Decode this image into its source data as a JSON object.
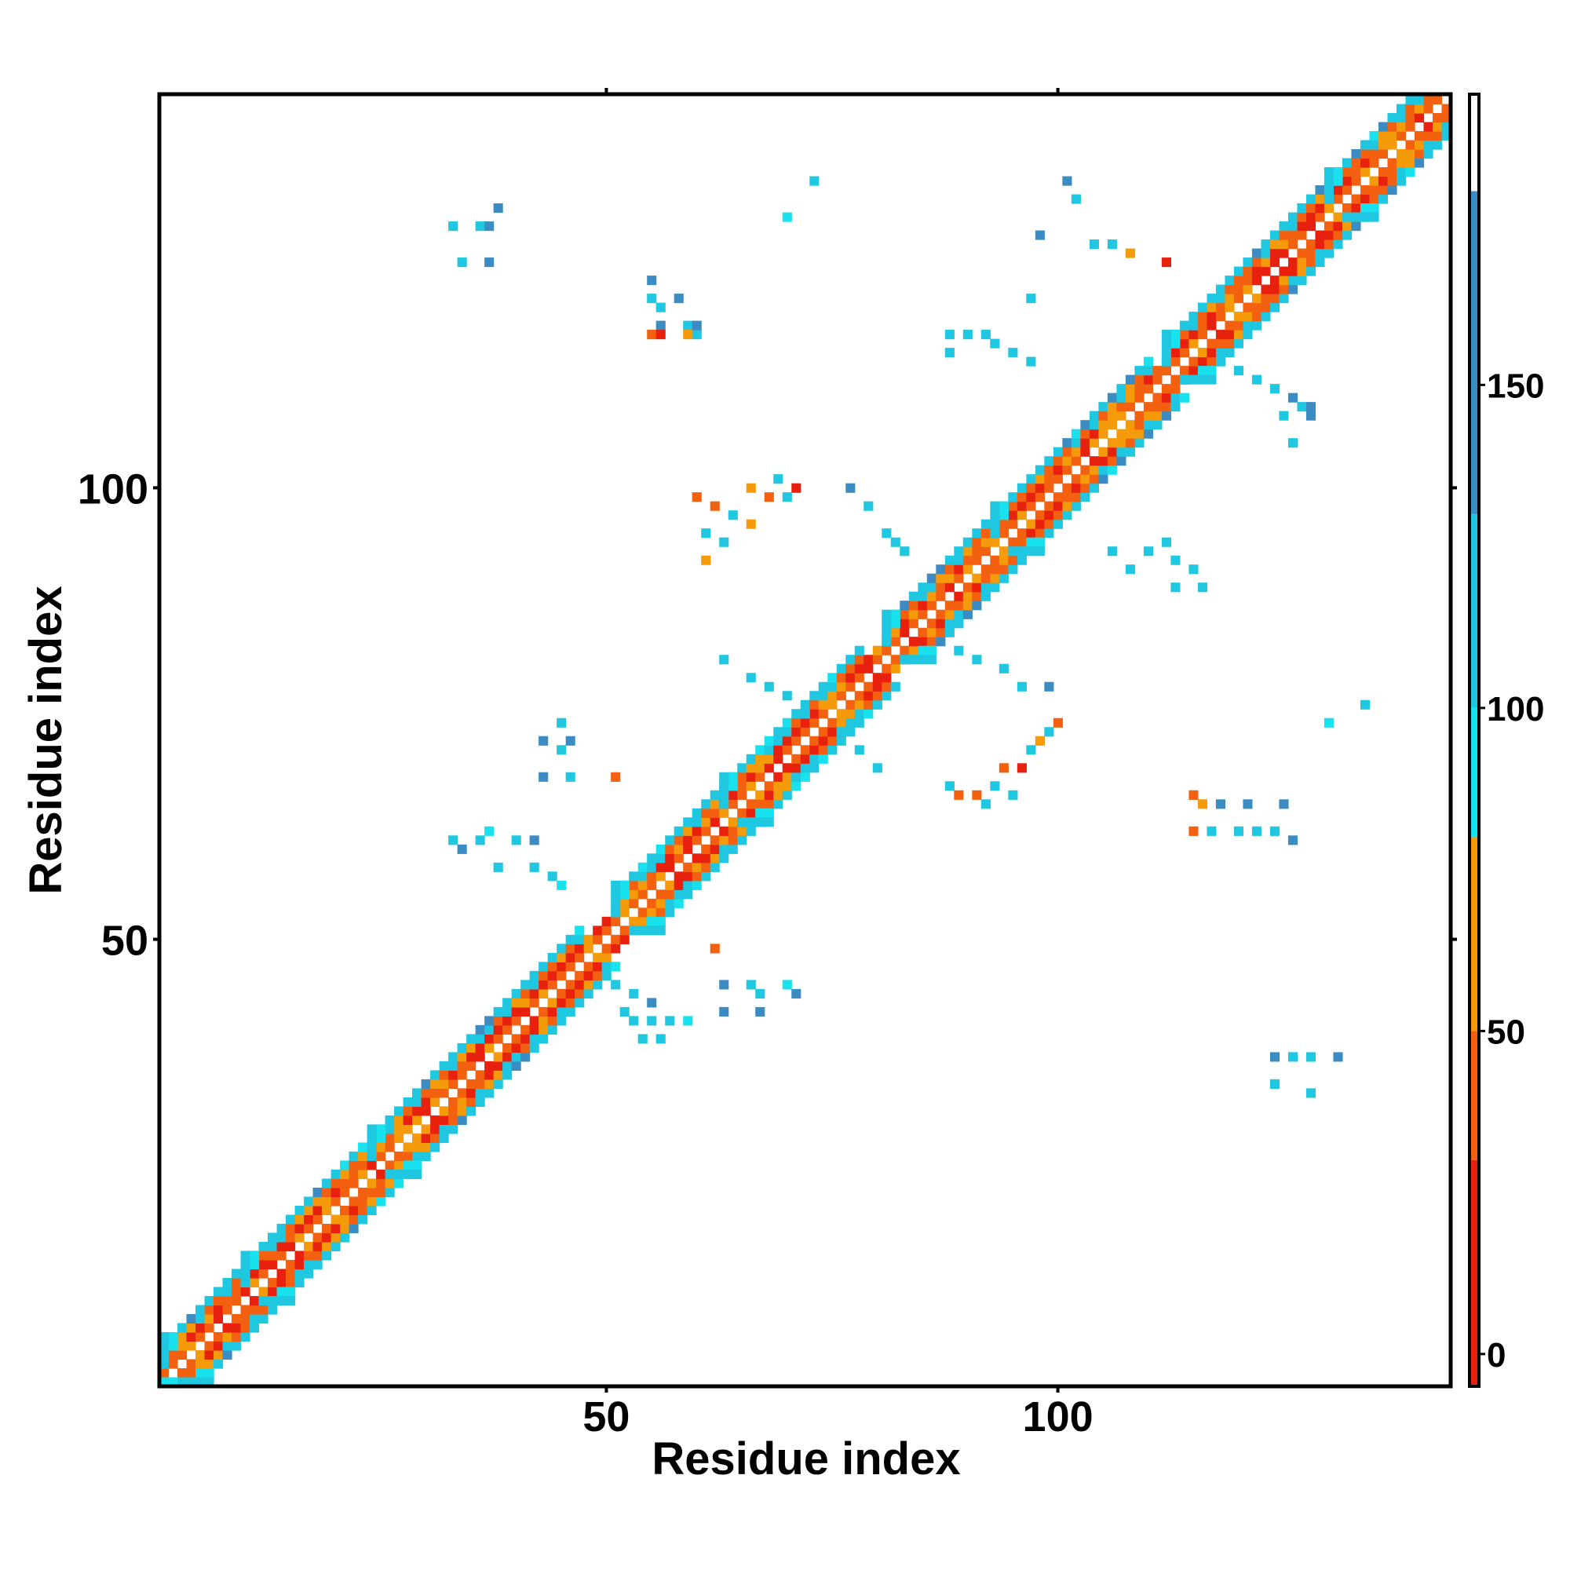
{
  "chart_data": {
    "type": "heatmap",
    "title": "",
    "xlabel": "Residue index",
    "ylabel": "Residue index",
    "n_residues": 143,
    "xlim": [
      1,
      143
    ],
    "ylim": [
      1,
      143
    ],
    "x_ticks": [
      50,
      100
    ],
    "y_ticks": [
      50,
      100
    ],
    "x_tick_labels": [
      "50",
      "100"
    ],
    "y_tick_labels": [
      "50",
      "100"
    ],
    "grid": false,
    "colorbar": {
      "ticks": [
        0,
        50,
        100,
        150
      ],
      "tick_labels": [
        "0",
        "50",
        "100",
        "150"
      ],
      "range": [
        -5,
        195
      ],
      "bands": [
        {
          "from": -5,
          "to": 30,
          "color": "#e8200e"
        },
        {
          "from": 30,
          "to": 50,
          "color": "#f26010"
        },
        {
          "from": 50,
          "to": 80,
          "color": "#f59a0a"
        },
        {
          "from": 80,
          "to": 100,
          "color": "#18e2ee"
        },
        {
          "from": 100,
          "to": 130,
          "color": "#1fc8e0"
        },
        {
          "from": 130,
          "to": 180,
          "color": "#3c8cc4"
        },
        {
          "from": 180,
          "to": 195,
          "color": "#ffffff"
        }
      ]
    },
    "series": [
      {
        "name": "diagonal_band",
        "helix_segments": [
          [
            2,
            10
          ],
          [
            11,
            24
          ],
          [
            25,
            47
          ],
          [
            52,
            63
          ],
          [
            64,
            78
          ],
          [
            82,
            92
          ],
          [
            94,
            110
          ],
          [
            113,
            130
          ],
          [
            131,
            143
          ]
        ]
      },
      {
        "name": "off_diagonal_contacts",
        "cells": [
          [
            33,
            129,
            "#1fc8e0"
          ],
          [
            36,
            129,
            "#1fc8e0"
          ],
          [
            37,
            129,
            "#3c8cc4"
          ],
          [
            34,
            125,
            "#1fc8e0"
          ],
          [
            37,
            125,
            "#3c8cc4"
          ],
          [
            38,
            131,
            "#3c8cc4"
          ],
          [
            55,
            123,
            "#3c8cc4"
          ],
          [
            55,
            121,
            "#1fc8e0"
          ],
          [
            56,
            120,
            "#1fc8e0"
          ],
          [
            56,
            118,
            "#3c8cc4"
          ],
          [
            58,
            121,
            "#3c8cc4"
          ],
          [
            59,
            118,
            "#1fc8e0"
          ],
          [
            60,
            117,
            "#1fc8e0"
          ],
          [
            55,
            117,
            "#f26010"
          ],
          [
            56,
            117,
            "#e8200e"
          ],
          [
            59,
            117,
            "#f59a0a"
          ],
          [
            60,
            118,
            "#3c8cc4"
          ],
          [
            70,
            130,
            "#18e2ee"
          ],
          [
            73,
            134,
            "#1fc8e0"
          ],
          [
            97,
            121,
            "#1fc8e0"
          ],
          [
            98,
            128,
            "#3c8cc4"
          ],
          [
            101,
            134,
            "#3c8cc4"
          ],
          [
            102,
            132,
            "#1fc8e0"
          ],
          [
            104,
            127,
            "#1fc8e0"
          ],
          [
            106,
            127,
            "#1fc8e0"
          ],
          [
            108,
            126,
            "#f59a0a"
          ],
          [
            112,
            125,
            "#e8200e"
          ],
          [
            88,
            117,
            "#1fc8e0"
          ],
          [
            90,
            117,
            "#1fc8e0"
          ],
          [
            92,
            117,
            "#1fc8e0"
          ],
          [
            93,
            116,
            "#1fc8e0"
          ],
          [
            95,
            115,
            "#1fc8e0"
          ],
          [
            97,
            114,
            "#1fc8e0"
          ],
          [
            88,
            115,
            "#1fc8e0"
          ],
          [
            120,
            113,
            "#1fc8e0"
          ],
          [
            122,
            112,
            "#1fc8e0"
          ],
          [
            124,
            111,
            "#1fc8e0"
          ],
          [
            126,
            110,
            "#3c8cc4"
          ],
          [
            127,
            109,
            "#1fc8e0"
          ],
          [
            128,
            108,
            "#3c8cc4"
          ],
          [
            125,
            108,
            "#1fc8e0"
          ],
          [
            126,
            105,
            "#1fc8e0"
          ],
          [
            128,
            109,
            "#3c8cc4"
          ],
          [
            60,
            99,
            "#f26010"
          ],
          [
            62,
            98,
            "#f26010"
          ],
          [
            64,
            97,
            "#1fc8e0"
          ],
          [
            66,
            96,
            "#f59a0a"
          ],
          [
            68,
            99,
            "#f26010"
          ],
          [
            70,
            99,
            "#1fc8e0"
          ],
          [
            61,
            95,
            "#1fc8e0"
          ],
          [
            63,
            94,
            "#1fc8e0"
          ],
          [
            66,
            100,
            "#f59a0a"
          ],
          [
            69,
            101,
            "#1fc8e0"
          ],
          [
            71,
            100,
            "#e8200e"
          ],
          [
            61,
            92,
            "#f59a0a"
          ],
          [
            77,
            100,
            "#3c8cc4"
          ],
          [
            79,
            98,
            "#1fc8e0"
          ],
          [
            81,
            95,
            "#1fc8e0"
          ],
          [
            82,
            94,
            "#1fc8e0"
          ],
          [
            83,
            93,
            "#1fc8e0"
          ],
          [
            106,
            93,
            "#1fc8e0"
          ],
          [
            108,
            91,
            "#1fc8e0"
          ],
          [
            110,
            93,
            "#1fc8e0"
          ],
          [
            112,
            94,
            "#1fc8e0"
          ],
          [
            113,
            92,
            "#1fc8e0"
          ],
          [
            113,
            89,
            "#1fc8e0"
          ],
          [
            116,
            89,
            "#1fc8e0"
          ],
          [
            115,
            91,
            "#1fc8e0"
          ],
          [
            89,
            82,
            "#1fc8e0"
          ],
          [
            91,
            81,
            "#1fc8e0"
          ],
          [
            94,
            80,
            "#1fc8e0"
          ],
          [
            96,
            78,
            "#1fc8e0"
          ],
          [
            99,
            78,
            "#3c8cc4"
          ],
          [
            63,
            81,
            "#1fc8e0"
          ],
          [
            66,
            79,
            "#1fc8e0"
          ],
          [
            68,
            78,
            "#1fc8e0"
          ],
          [
            70,
            77,
            "#1fc8e0"
          ],
          [
            72,
            75,
            "#1fc8e0"
          ],
          [
            76,
            73,
            "#1fc8e0"
          ],
          [
            78,
            71,
            "#1fc8e0"
          ],
          [
            80,
            69,
            "#1fc8e0"
          ],
          [
            88,
            67,
            "#1fc8e0"
          ],
          [
            89,
            66,
            "#f26010"
          ],
          [
            91,
            66,
            "#f26010"
          ],
          [
            93,
            67,
            "#1fc8e0"
          ],
          [
            94,
            69,
            "#f26010"
          ],
          [
            96,
            69,
            "#e8200e"
          ],
          [
            97,
            71,
            "#1fc8e0"
          ],
          [
            98,
            72,
            "#f59a0a"
          ],
          [
            99,
            73,
            "#1fc8e0"
          ],
          [
            100,
            74,
            "#f26010"
          ],
          [
            92,
            65,
            "#1fc8e0"
          ],
          [
            95,
            66,
            "#1fc8e0"
          ],
          [
            115,
            66,
            "#f26010"
          ],
          [
            116,
            65,
            "#f59a0a"
          ],
          [
            118,
            65,
            "#3c8cc4"
          ],
          [
            121,
            65,
            "#3c8cc4"
          ],
          [
            117,
            62,
            "#1fc8e0"
          ],
          [
            120,
            62,
            "#1fc8e0"
          ],
          [
            122,
            62,
            "#1fc8e0"
          ],
          [
            124,
            62,
            "#1fc8e0"
          ],
          [
            126,
            61,
            "#3c8cc4"
          ],
          [
            115,
            62,
            "#f26010"
          ],
          [
            125,
            65,
            "#3c8cc4"
          ],
          [
            130,
            74,
            "#18e2ee"
          ],
          [
            134,
            76,
            "#1fc8e0"
          ],
          [
            33,
            61,
            "#1fc8e0"
          ],
          [
            34,
            60,
            "#3c8cc4"
          ],
          [
            36,
            61,
            "#1fc8e0"
          ],
          [
            38,
            58,
            "#1fc8e0"
          ],
          [
            40,
            61,
            "#1fc8e0"
          ],
          [
            42,
            61,
            "#3c8cc4"
          ],
          [
            42,
            58,
            "#1fc8e0"
          ],
          [
            37,
            62,
            "#18e2ee"
          ],
          [
            44,
            57,
            "#1fc8e0"
          ],
          [
            45,
            56,
            "#18e2ee"
          ],
          [
            43,
            72,
            "#3c8cc4"
          ],
          [
            45,
            71,
            "#1fc8e0"
          ],
          [
            46,
            72,
            "#3c8cc4"
          ],
          [
            46,
            68,
            "#1fc8e0"
          ],
          [
            43,
            68,
            "#3c8cc4"
          ],
          [
            45,
            74,
            "#1fc8e0"
          ],
          [
            51,
            68,
            "#f26010"
          ],
          [
            62,
            49,
            "#f26010"
          ],
          [
            51,
            45,
            "#1fc8e0"
          ],
          [
            53,
            44,
            "#1fc8e0"
          ],
          [
            55,
            43,
            "#3c8cc4"
          ],
          [
            53,
            41,
            "#1fc8e0"
          ],
          [
            55,
            41,
            "#1fc8e0"
          ],
          [
            57,
            41,
            "#1fc8e0"
          ],
          [
            59,
            41,
            "#18e2ee"
          ],
          [
            54,
            39,
            "#1fc8e0"
          ],
          [
            56,
            39,
            "#1fc8e0"
          ],
          [
            52,
            42,
            "#1fc8e0"
          ],
          [
            63,
            45,
            "#3c8cc4"
          ],
          [
            66,
            45,
            "#1fc8e0"
          ],
          [
            70,
            45,
            "#18e2ee"
          ],
          [
            71,
            44,
            "#3c8cc4"
          ],
          [
            63,
            42,
            "#3c8cc4"
          ],
          [
            67,
            42,
            "#3c8cc4"
          ],
          [
            67,
            44,
            "#1fc8e0"
          ],
          [
            124,
            37,
            "#3c8cc4"
          ],
          [
            126,
            37,
            "#1fc8e0"
          ],
          [
            128,
            37,
            "#1fc8e0"
          ],
          [
            131,
            37,
            "#3c8cc4"
          ],
          [
            124,
            34,
            "#1fc8e0"
          ],
          [
            128,
            33,
            "#1fc8e0"
          ]
        ]
      }
    ]
  }
}
